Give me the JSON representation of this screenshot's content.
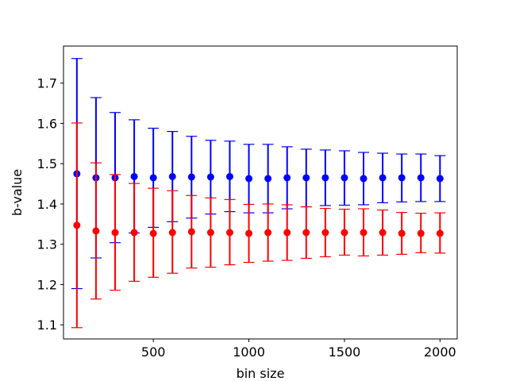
{
  "chart_data": {
    "type": "scatter",
    "xlabel": "bin size",
    "ylabel": "b-value",
    "xlim": [
      30,
      2090
    ],
    "ylim": [
      1.065,
      1.792
    ],
    "x_ticks": [
      500,
      1000,
      1500,
      2000
    ],
    "x_tick_labels": [
      "500",
      "1000",
      "1500",
      "2000"
    ],
    "y_ticks": [
      1.1,
      1.2,
      1.3,
      1.4,
      1.5,
      1.6,
      1.7
    ],
    "y_tick_labels": [
      "1.1",
      "1.2",
      "1.3",
      "1.4",
      "1.5",
      "1.6",
      "1.7"
    ],
    "grid": false,
    "x": [
      100,
      200,
      300,
      400,
      500,
      600,
      700,
      800,
      900,
      1000,
      1100,
      1200,
      1300,
      1400,
      1500,
      1600,
      1700,
      1800,
      1900,
      2000
    ],
    "series": [
      {
        "color": "#0000ff",
        "values": [
          1.475,
          1.465,
          1.465,
          1.468,
          1.465,
          1.468,
          1.467,
          1.467,
          1.468,
          1.463,
          1.463,
          1.465,
          1.465,
          1.465,
          1.465,
          1.463,
          1.465,
          1.465,
          1.465,
          1.463
        ],
        "lower": [
          1.19,
          1.266,
          1.304,
          1.328,
          1.342,
          1.356,
          1.365,
          1.375,
          1.381,
          1.378,
          1.378,
          1.388,
          1.393,
          1.396,
          1.397,
          1.398,
          1.403,
          1.405,
          1.406,
          1.406
        ],
        "upper": [
          1.761,
          1.664,
          1.627,
          1.609,
          1.588,
          1.58,
          1.568,
          1.558,
          1.556,
          1.548,
          1.548,
          1.542,
          1.536,
          1.534,
          1.532,
          1.528,
          1.526,
          1.524,
          1.524,
          1.52
        ]
      },
      {
        "color": "#ff0000",
        "values": [
          1.347,
          1.333,
          1.329,
          1.329,
          1.327,
          1.329,
          1.331,
          1.329,
          1.329,
          1.327,
          1.329,
          1.329,
          1.329,
          1.329,
          1.329,
          1.329,
          1.329,
          1.327,
          1.327,
          1.327
        ],
        "lower": [
          1.093,
          1.164,
          1.186,
          1.208,
          1.218,
          1.228,
          1.241,
          1.243,
          1.249,
          1.255,
          1.258,
          1.26,
          1.265,
          1.269,
          1.273,
          1.271,
          1.273,
          1.275,
          1.279,
          1.278
        ],
        "upper": [
          1.601,
          1.502,
          1.473,
          1.451,
          1.439,
          1.433,
          1.421,
          1.415,
          1.411,
          1.399,
          1.4,
          1.398,
          1.393,
          1.389,
          1.387,
          1.388,
          1.385,
          1.379,
          1.377,
          1.378
        ]
      }
    ]
  }
}
